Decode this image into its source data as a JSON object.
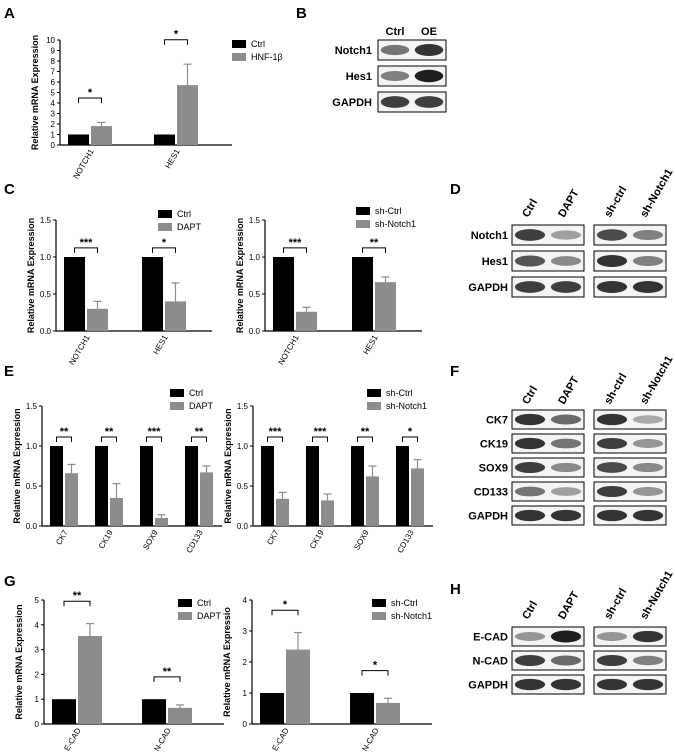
{
  "panels": [
    "A",
    "B",
    "C",
    "D",
    "E",
    "F",
    "G",
    "H"
  ],
  "colors": {
    "ctrl": "#000000",
    "treat": "#8c8c8c"
  },
  "chart_data": [
    {
      "id": "A",
      "type": "bar",
      "ylabel": "Relative mRNA Expression",
      "ylim": [
        0,
        10
      ],
      "yticks": [
        "0",
        "1",
        "2",
        "3",
        "4",
        "5",
        "6",
        "7",
        "8",
        "9",
        "10"
      ],
      "categories": [
        "NOTCH1",
        "HES1"
      ],
      "series": [
        {
          "name": "Ctrl",
          "values": [
            1,
            1
          ],
          "errors": [
            0,
            0
          ]
        },
        {
          "name": "HNF-1β",
          "values": [
            1.8,
            5.7
          ],
          "errors": [
            0.35,
            2.0
          ]
        }
      ],
      "significance": [
        "*",
        "*"
      ]
    },
    {
      "id": "C1",
      "type": "bar",
      "ylabel": "Relative mRNA Expression",
      "ylim": [
        0,
        1.5
      ],
      "yticks": [
        "0.0",
        "0.5",
        "1.0",
        "1.5"
      ],
      "categories": [
        "NOTCH1",
        "HES1"
      ],
      "series": [
        {
          "name": "Ctrl",
          "values": [
            1,
            1
          ],
          "errors": [
            0,
            0
          ]
        },
        {
          "name": "DAPT",
          "values": [
            0.3,
            0.4
          ],
          "errors": [
            0.1,
            0.25
          ]
        }
      ],
      "significance": [
        "***",
        "*"
      ]
    },
    {
      "id": "C2",
      "type": "bar",
      "ylabel": "Relative mRNA Expression",
      "ylim": [
        0,
        1.5
      ],
      "yticks": [
        "0.0",
        "0.5",
        "1.0",
        "1.5"
      ],
      "categories": [
        "NOTCH1",
        "HES1"
      ],
      "series": [
        {
          "name": "sh-Ctrl",
          "values": [
            1,
            1
          ],
          "errors": [
            0,
            0
          ]
        },
        {
          "name": "sh-Notch1",
          "values": [
            0.26,
            0.66
          ],
          "errors": [
            0.06,
            0.07
          ]
        }
      ],
      "significance": [
        "***",
        "**"
      ]
    },
    {
      "id": "E1",
      "type": "bar",
      "ylabel": "Relative mRNA Expression",
      "ylim": [
        0,
        1.5
      ],
      "yticks": [
        "0.0",
        "0.5",
        "1.0",
        "1.5"
      ],
      "categories": [
        "CK7",
        "CK19",
        "SOX9",
        "CD133"
      ],
      "series": [
        {
          "name": "Ctrl",
          "values": [
            1,
            1,
            1,
            1
          ],
          "errors": [
            0,
            0,
            0,
            0
          ]
        },
        {
          "name": "DAPT",
          "values": [
            0.66,
            0.35,
            0.1,
            0.67
          ],
          "errors": [
            0.11,
            0.18,
            0.04,
            0.08
          ]
        }
      ],
      "significance": [
        "**",
        "**",
        "***",
        "**"
      ]
    },
    {
      "id": "E2",
      "type": "bar",
      "ylabel": "Relative mRNA Expression",
      "ylim": [
        0,
        1.5
      ],
      "yticks": [
        "0.0",
        "0.5",
        "1.0",
        "1.5"
      ],
      "categories": [
        "CK7",
        "CK19",
        "SOX9",
        "CD133"
      ],
      "series": [
        {
          "name": "sh-Ctrl",
          "values": [
            1,
            1,
            1,
            1
          ],
          "errors": [
            0,
            0,
            0,
            0
          ]
        },
        {
          "name": "sh-Notch1",
          "values": [
            0.34,
            0.32,
            0.62,
            0.72
          ],
          "errors": [
            0.08,
            0.08,
            0.13,
            0.11
          ]
        }
      ],
      "significance": [
        "***",
        "***",
        "**",
        "*"
      ]
    },
    {
      "id": "G1",
      "type": "bar",
      "ylabel": "Relative mRNA Expression",
      "ylim": [
        0,
        5
      ],
      "yticks": [
        "0",
        "1",
        "2",
        "3",
        "4",
        "5"
      ],
      "categories": [
        "E-CAD",
        "N-CAD"
      ],
      "series": [
        {
          "name": "Ctrl",
          "values": [
            1,
            1
          ],
          "errors": [
            0,
            0
          ]
        },
        {
          "name": "DAPT",
          "values": [
            3.55,
            0.65
          ],
          "errors": [
            0.5,
            0.12
          ]
        }
      ],
      "significance": [
        "**",
        "**"
      ]
    },
    {
      "id": "G2",
      "type": "bar",
      "ylabel": "Relative mRNA Expressio",
      "ylim": [
        0,
        4
      ],
      "yticks": [
        "0",
        "1",
        "2",
        "3",
        "4"
      ],
      "categories": [
        "E-CAD",
        "N-CAD"
      ],
      "series": [
        {
          "name": "sh-Ctrl",
          "values": [
            1,
            1
          ],
          "errors": [
            0,
            0
          ]
        },
        {
          "name": "sh-Notch1",
          "values": [
            2.4,
            0.68
          ],
          "errors": [
            0.55,
            0.15
          ]
        }
      ],
      "significance": [
        "*",
        "*"
      ]
    }
  ],
  "blots": [
    {
      "id": "B",
      "columns": [
        "Ctrl",
        "OE"
      ],
      "rows": [
        "Notch1",
        "Hes1",
        "GAPDH"
      ],
      "intensity": [
        [
          0.55,
          0.85
        ],
        [
          0.5,
          0.95
        ],
        [
          0.8,
          0.8
        ]
      ]
    },
    {
      "id": "D",
      "columns": [
        "Ctrl",
        "DAPT",
        "sh-ctrl",
        "sh-Notch1"
      ],
      "rows": [
        "Notch1",
        "Hes1",
        "GAPDH"
      ],
      "intensity": [
        [
          0.8,
          0.35,
          0.75,
          0.5
        ],
        [
          0.7,
          0.45,
          0.85,
          0.5
        ],
        [
          0.8,
          0.8,
          0.85,
          0.85
        ]
      ]
    },
    {
      "id": "F",
      "columns": [
        "Ctrl",
        "DAPT",
        "sh-ctrl",
        "sh-Notch1"
      ],
      "rows": [
        "CK7",
        "CK19",
        "SOX9",
        "CD133",
        "GAPDH"
      ],
      "intensity": [
        [
          0.85,
          0.6,
          0.85,
          0.3
        ],
        [
          0.85,
          0.55,
          0.8,
          0.4
        ],
        [
          0.8,
          0.45,
          0.75,
          0.45
        ],
        [
          0.55,
          0.35,
          0.8,
          0.4
        ],
        [
          0.85,
          0.85,
          0.85,
          0.85
        ]
      ]
    },
    {
      "id": "H",
      "columns": [
        "Ctrl",
        "DAPT",
        "sh-ctrl",
        "sh-Notch1"
      ],
      "rows": [
        "E-CAD",
        "N-CAD",
        "GAPDH"
      ],
      "intensity": [
        [
          0.4,
          0.95,
          0.4,
          0.85
        ],
        [
          0.8,
          0.6,
          0.8,
          0.5
        ],
        [
          0.85,
          0.85,
          0.85,
          0.85
        ]
      ]
    }
  ]
}
